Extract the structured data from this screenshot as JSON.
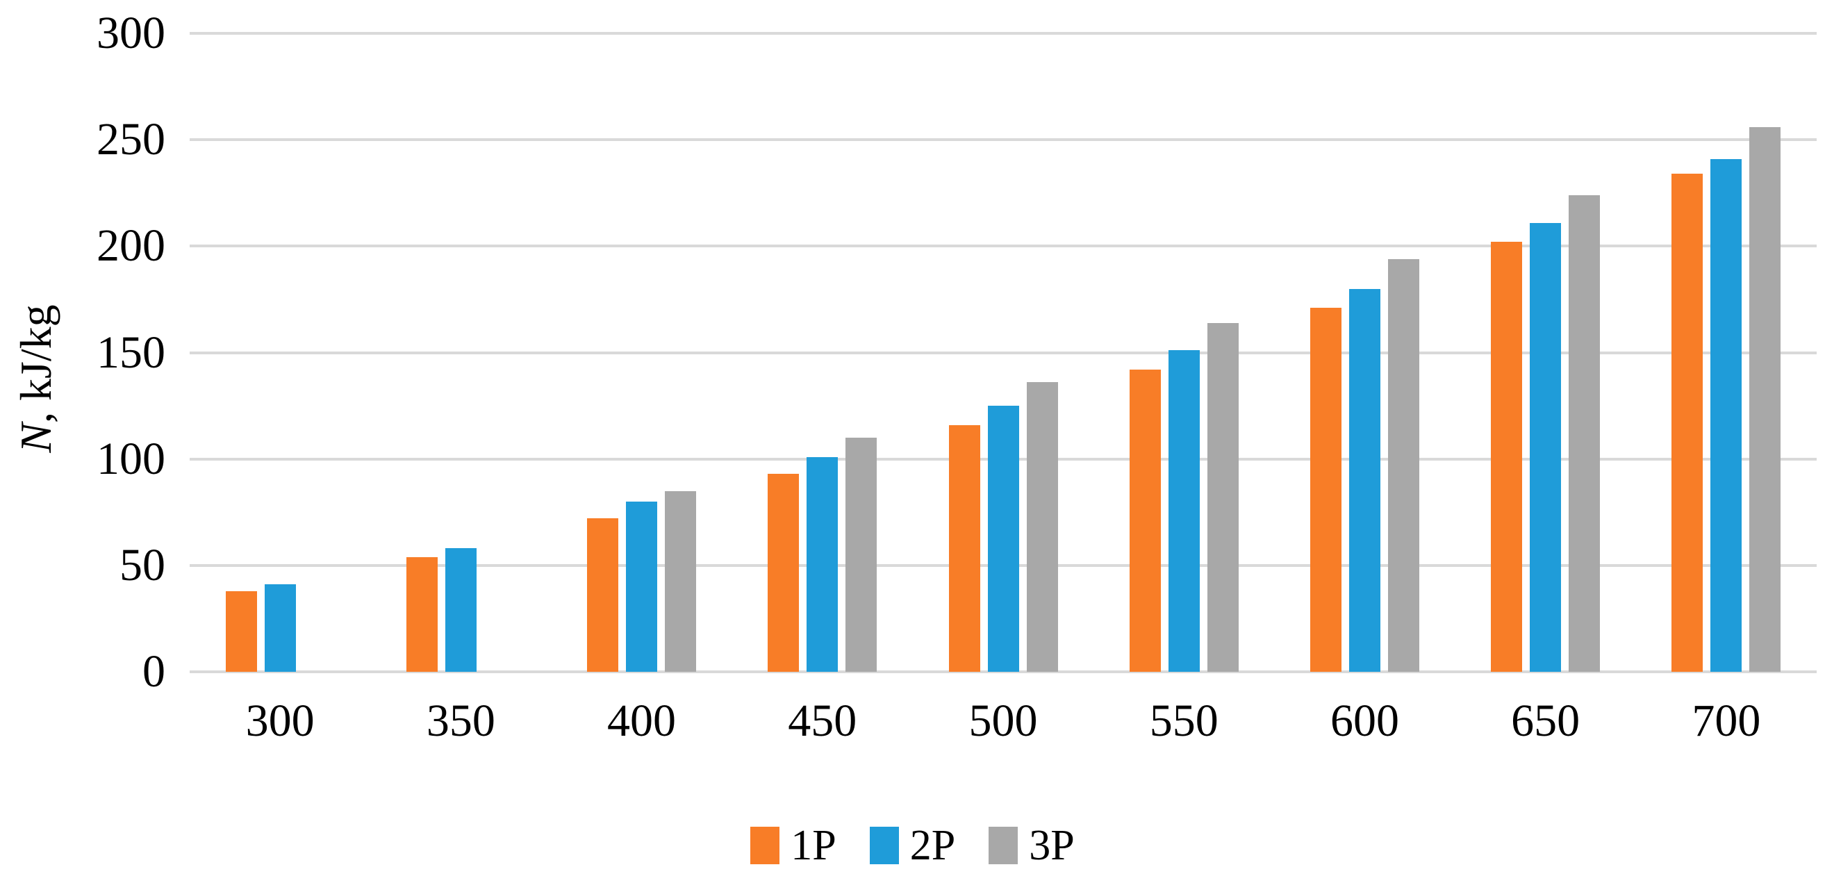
{
  "figure": {
    "background_color": "#FFFFFF",
    "text_color": "#000000"
  },
  "chart_data": {
    "type": "bar",
    "title": "",
    "categories": [
      "300",
      "350",
      "400",
      "450",
      "500",
      "550",
      "600",
      "650",
      "700"
    ],
    "series": [
      {
        "name": "1P",
        "color": "#F87D27",
        "values": [
          38,
          54,
          72,
          93,
          116,
          142,
          171,
          202,
          234
        ]
      },
      {
        "name": "2P",
        "color": "#1F9CD9",
        "values": [
          41,
          58,
          80,
          101,
          125,
          151,
          180,
          211,
          241
        ]
      },
      {
        "name": "3P",
        "color": "#A8A8A8",
        "values": [
          null,
          null,
          85,
          110,
          136,
          164,
          194,
          224,
          256
        ]
      }
    ],
    "xlabel": "",
    "ylabel": "N, kJ/kg",
    "ylabel_italic_part": "N",
    "ylabel_rest": ", kJ/kg",
    "ylim": [
      0,
      300
    ],
    "yticks": [
      0,
      50,
      100,
      150,
      200,
      250,
      300
    ],
    "grid": "horizontal",
    "gridline_color": "#D9D9D9",
    "legend_position": "bottom-center",
    "legend_entries": [
      "1P",
      "2P",
      "3P"
    ]
  }
}
